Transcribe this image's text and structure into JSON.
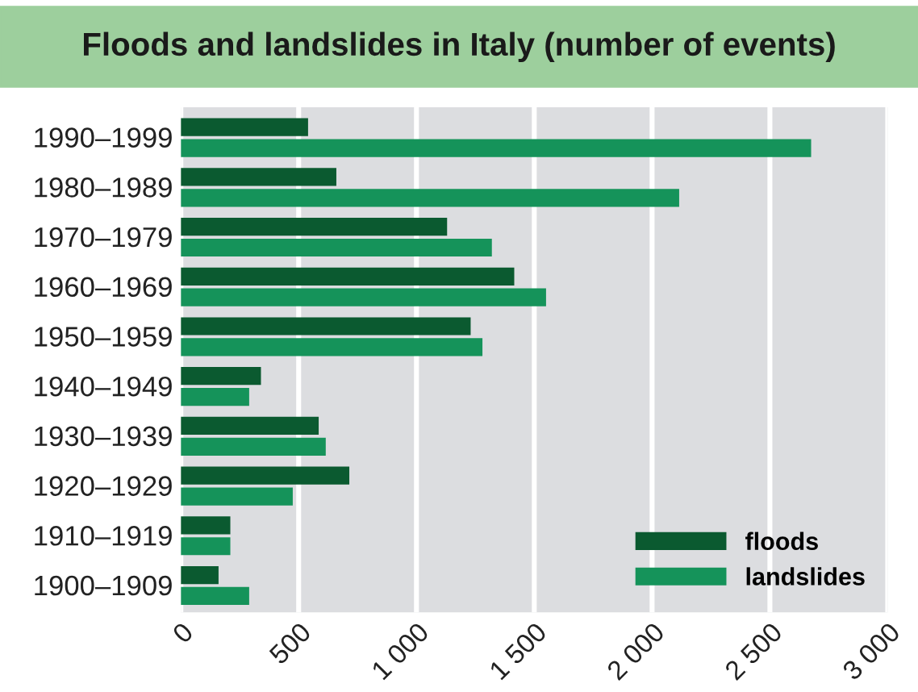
{
  "chart_data": {
    "type": "bar",
    "orientation": "horizontal",
    "title": "Floods and landslides in Italy (number of events)",
    "categories": [
      "1990–1999",
      "1980–1989",
      "1970–1979",
      "1960–1969",
      "1950–1959",
      "1940–1949",
      "1930–1939",
      "1920–1929",
      "1910–1919",
      "1900–1909"
    ],
    "series": [
      {
        "name": "floods",
        "color": "#0b5a30",
        "values": [
          540,
          660,
          1130,
          1415,
          1230,
          340,
          585,
          715,
          210,
          160
        ]
      },
      {
        "name": "landslides",
        "color": "#15935a",
        "values": [
          2675,
          2115,
          1320,
          1550,
          1280,
          290,
          615,
          475,
          210,
          290
        ]
      }
    ],
    "xlim": [
      0,
      3000
    ],
    "xticks": [
      0,
      500,
      {
        "value": 1000,
        "label": "1 000"
      },
      {
        "value": 1500,
        "label": "1 500"
      },
      {
        "value": 2000,
        "label": "2 000"
      },
      {
        "value": 2500,
        "label": "2 500"
      },
      {
        "value": 3000,
        "label": "3 000"
      }
    ],
    "grid": "x",
    "legend": "bottom right"
  }
}
